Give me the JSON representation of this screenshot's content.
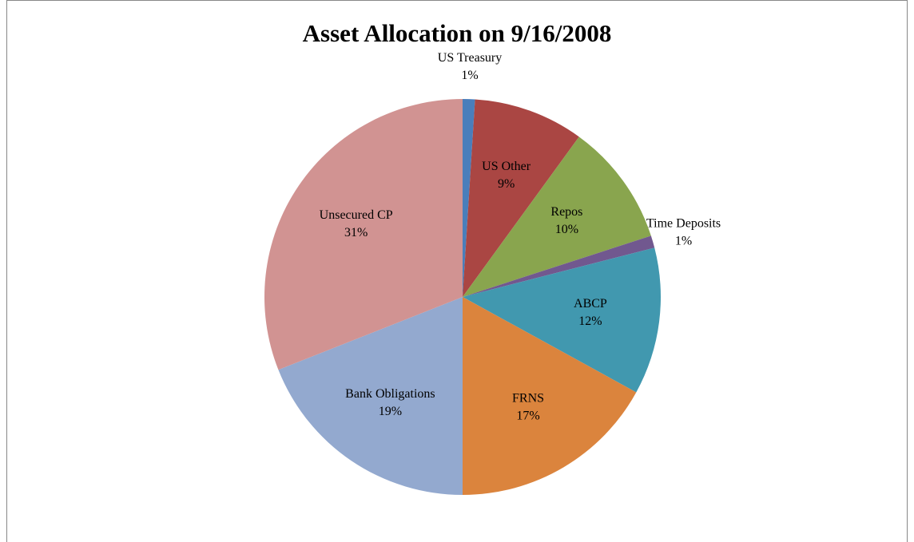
{
  "chart_data": {
    "type": "pie",
    "title": "Asset Allocation on 9/16/2008",
    "categories": [
      "US Treasury",
      "US Other",
      "Repos",
      "Time Deposits",
      "ABCP",
      "FRNS",
      "Bank Obligations",
      "Unsecured CP"
    ],
    "values": [
      1,
      9,
      10,
      1,
      12,
      17,
      19,
      31
    ],
    "value_labels": [
      "1%",
      "9%",
      "10%",
      "1%",
      "12%",
      "17%",
      "19%",
      "31%"
    ],
    "colors": [
      "#4a7ebb",
      "#aa4643",
      "#89a54e",
      "#71588f",
      "#4198af",
      "#db843d",
      "#93a9cf",
      "#d19392"
    ]
  }
}
